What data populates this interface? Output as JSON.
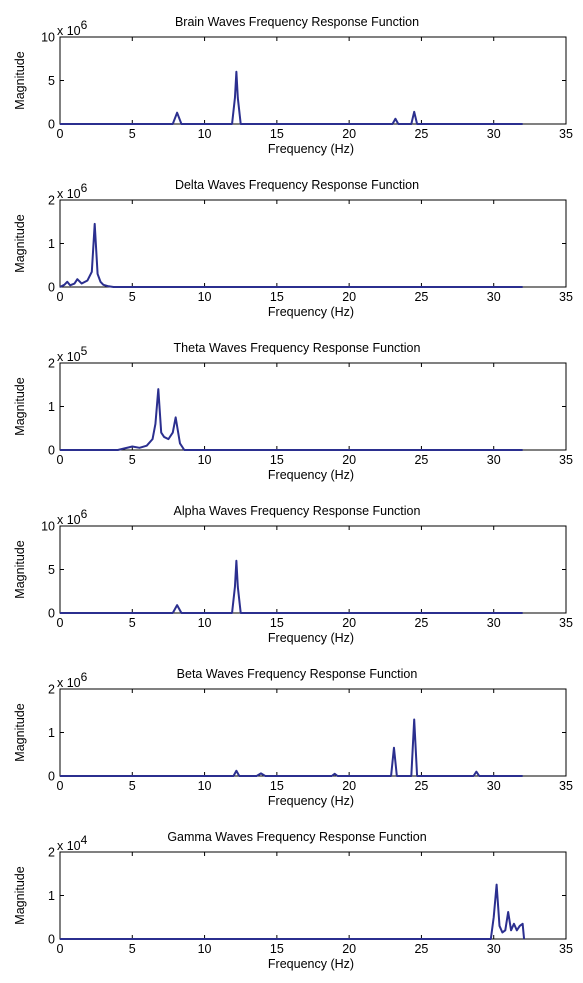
{
  "colors": {
    "line": "#2b2f8f",
    "axis": "#000000",
    "background": "#ffffff"
  },
  "chart_data": [
    {
      "type": "line",
      "title": "Brain Waves Frequency Response Function",
      "xlabel": "Frequency (Hz)",
      "ylabel": "Magnitude",
      "multiplier": "x 10",
      "exponent": "6",
      "xlim": [
        0,
        35
      ],
      "ylim": [
        0,
        10
      ],
      "xticks": [
        "0",
        "5",
        "10",
        "15",
        "20",
        "25",
        "30",
        "35"
      ],
      "yticks": [
        "0",
        "5",
        "10"
      ],
      "grid": false,
      "series": [
        {
          "x": [
            0,
            7.8,
            8.1,
            8.4,
            11.9,
            12.1,
            12.2,
            12.3,
            12.5,
            23.0,
            23.2,
            23.4,
            24.3,
            24.5,
            24.7,
            32
          ],
          "y": [
            0,
            0,
            1.3,
            0,
            0,
            3.0,
            6.0,
            3.0,
            0,
            0,
            0.6,
            0,
            0,
            1.4,
            0,
            0
          ]
        }
      ]
    },
    {
      "type": "line",
      "title": "Delta Waves Frequency Response Function",
      "xlabel": "Frequency (Hz)",
      "ylabel": "Magnitude",
      "multiplier": "x 10",
      "exponent": "6",
      "xlim": [
        0,
        35
      ],
      "ylim": [
        0,
        2
      ],
      "xticks": [
        "0",
        "5",
        "10",
        "15",
        "20",
        "25",
        "30",
        "35"
      ],
      "yticks": [
        "0",
        "1",
        "2"
      ],
      "grid": false,
      "series": [
        {
          "x": [
            0,
            0.3,
            0.5,
            0.7,
            1.0,
            1.2,
            1.5,
            1.9,
            2.2,
            2.4,
            2.6,
            2.8,
            3.0,
            3.3,
            3.7,
            32
          ],
          "y": [
            0,
            0.05,
            0.12,
            0.04,
            0.08,
            0.18,
            0.08,
            0.15,
            0.35,
            1.45,
            0.3,
            0.12,
            0.05,
            0.02,
            0,
            0
          ]
        }
      ]
    },
    {
      "type": "line",
      "title": "Theta Waves Frequency Response Function",
      "xlabel": "Frequency (Hz)",
      "ylabel": "Magnitude",
      "multiplier": "x 10",
      "exponent": "5",
      "xlim": [
        0,
        35
      ],
      "ylim": [
        0,
        2
      ],
      "xticks": [
        "0",
        "5",
        "10",
        "15",
        "20",
        "25",
        "30",
        "35"
      ],
      "yticks": [
        "0",
        "1",
        "2"
      ],
      "grid": false,
      "series": [
        {
          "x": [
            0,
            4.0,
            4.5,
            5.0,
            5.5,
            6.0,
            6.4,
            6.6,
            6.8,
            7.0,
            7.2,
            7.5,
            7.8,
            8.0,
            8.3,
            8.6,
            32
          ],
          "y": [
            0,
            0,
            0.04,
            0.08,
            0.05,
            0.1,
            0.25,
            0.6,
            1.4,
            0.4,
            0.3,
            0.25,
            0.4,
            0.75,
            0.15,
            0,
            0
          ]
        }
      ]
    },
    {
      "type": "line",
      "title": "Alpha Waves Frequency Response Function",
      "xlabel": "Frequency (Hz)",
      "ylabel": "Magnitude",
      "multiplier": "x 10",
      "exponent": "6",
      "xlim": [
        0,
        35
      ],
      "ylim": [
        0,
        10
      ],
      "xticks": [
        "0",
        "5",
        "10",
        "15",
        "20",
        "25",
        "30",
        "35"
      ],
      "yticks": [
        "0",
        "5",
        "10"
      ],
      "grid": false,
      "series": [
        {
          "x": [
            0,
            7.8,
            8.1,
            8.4,
            11.9,
            12.1,
            12.2,
            12.3,
            12.5,
            32
          ],
          "y": [
            0,
            0,
            0.9,
            0,
            0,
            3.0,
            6.0,
            3.0,
            0,
            0
          ]
        }
      ]
    },
    {
      "type": "line",
      "title": "Beta Waves Frequency Response Function",
      "xlabel": "Frequency (Hz)",
      "ylabel": "Magnitude",
      "multiplier": "x 10",
      "exponent": "6",
      "xlim": [
        0,
        35
      ],
      "ylim": [
        0,
        2
      ],
      "xticks": [
        "0",
        "5",
        "10",
        "15",
        "20",
        "25",
        "30",
        "35"
      ],
      "yticks": [
        "0",
        "1",
        "2"
      ],
      "grid": false,
      "series": [
        {
          "x": [
            0,
            12.0,
            12.2,
            12.4,
            13.6,
            13.9,
            14.2,
            18.8,
            19.0,
            19.2,
            22.9,
            23.1,
            23.3,
            24.3,
            24.5,
            24.7,
            28.6,
            28.8,
            29.0,
            32
          ],
          "y": [
            0,
            0,
            0.12,
            0,
            0,
            0.06,
            0,
            0,
            0.05,
            0,
            0,
            0.65,
            0,
            0,
            1.3,
            0,
            0,
            0.1,
            0,
            0
          ]
        }
      ]
    },
    {
      "type": "line",
      "title": "Gamma Waves Frequency Response Function",
      "xlabel": "Frequency (Hz)",
      "ylabel": "Magnitude",
      "multiplier": "x 10",
      "exponent": "4",
      "xlim": [
        0,
        35
      ],
      "ylim": [
        0,
        2
      ],
      "xticks": [
        "0",
        "5",
        "10",
        "15",
        "20",
        "25",
        "30",
        "35"
      ],
      "yticks": [
        "0",
        "1",
        "2"
      ],
      "grid": false,
      "series": [
        {
          "x": [
            0,
            29.8,
            30.0,
            30.2,
            30.4,
            30.6,
            30.8,
            31.0,
            31.2,
            31.4,
            31.6,
            31.8,
            32.0,
            32.1
          ],
          "y": [
            0,
            0,
            0.5,
            1.25,
            0.3,
            0.15,
            0.2,
            0.62,
            0.2,
            0.35,
            0.2,
            0.3,
            0.35,
            0
          ]
        }
      ]
    }
  ]
}
